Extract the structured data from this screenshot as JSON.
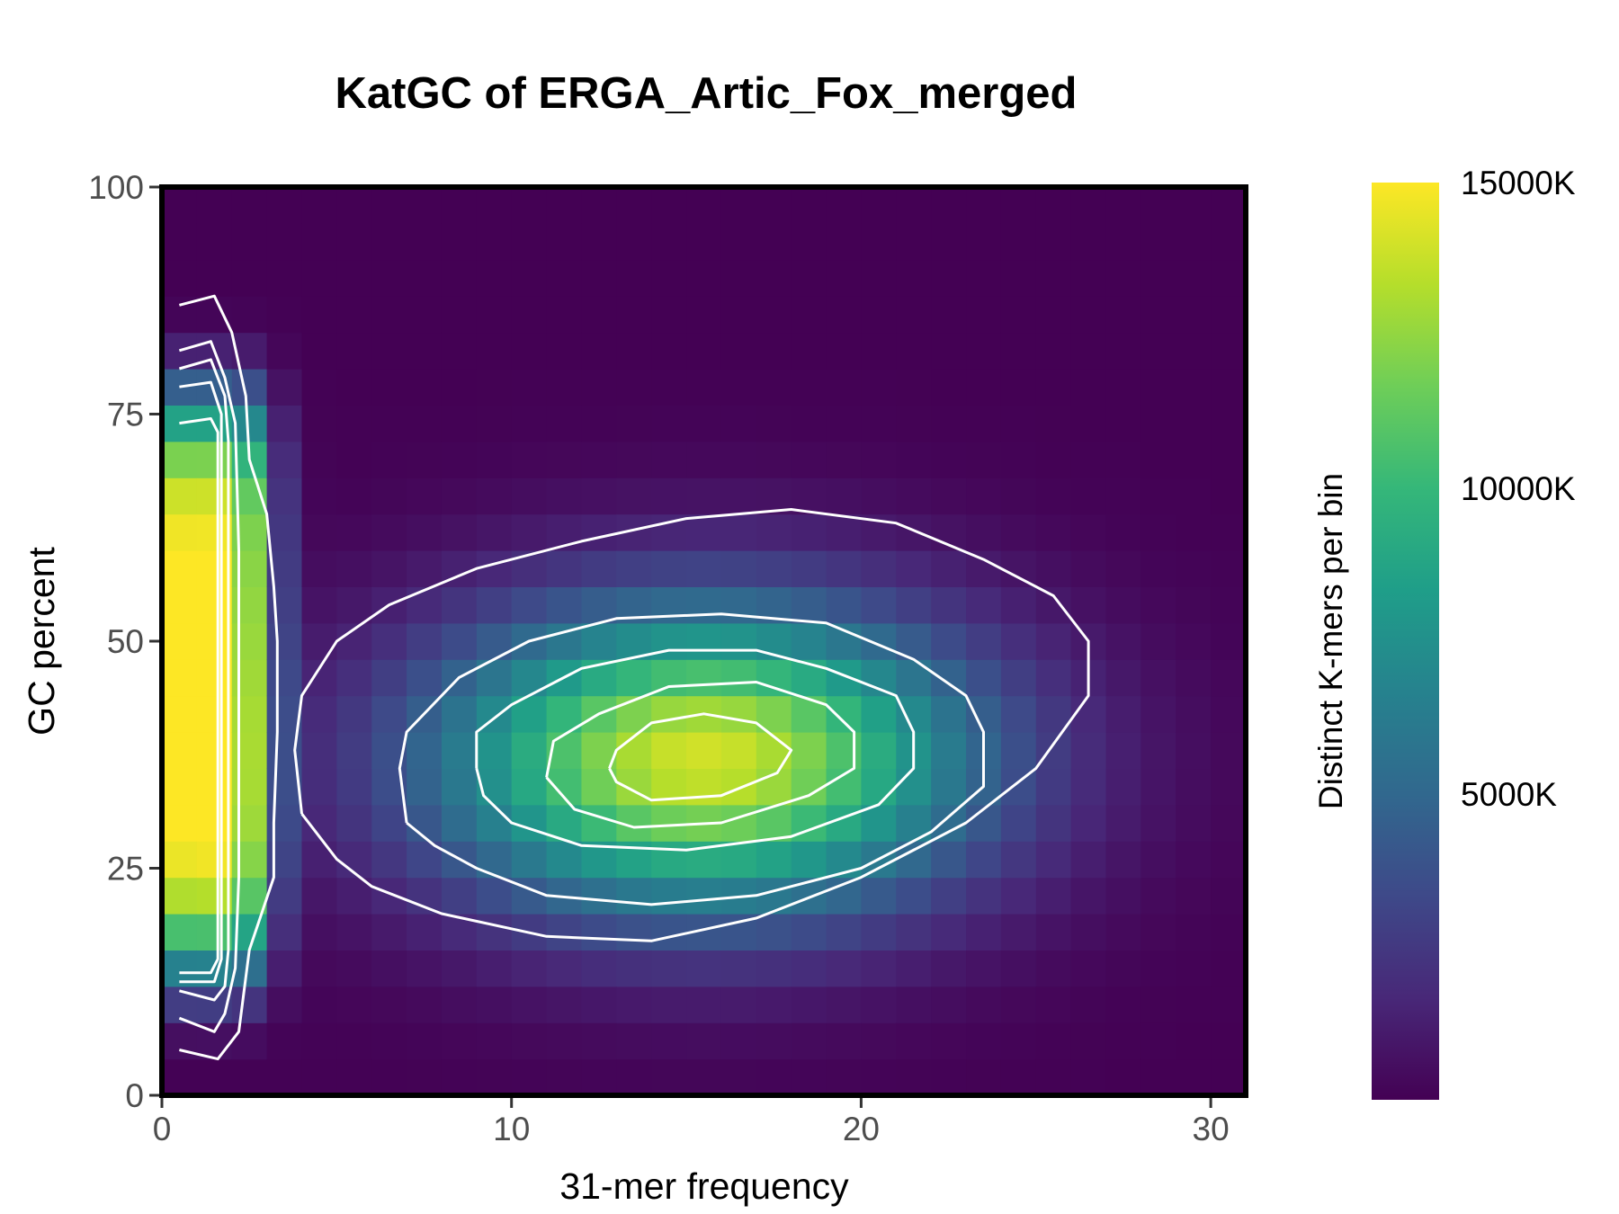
{
  "chart_data": {
    "type": "heatmap",
    "title": "KatGC of ERGA_Artic_Fox_merged",
    "xlabel": "31-mer frequency",
    "ylabel": "GC percent",
    "xlim": [
      0,
      31
    ],
    "ylim": [
      0,
      100
    ],
    "x_ticks": [
      "0",
      "10",
      "20",
      "30"
    ],
    "y_ticks": [
      "0",
      "25",
      "50",
      "75",
      "100"
    ],
    "colorbar": {
      "title": "Distinct K-mers per bin",
      "ticks": [
        "5000K",
        "10000K",
        "15000K"
      ],
      "tick_values": [
        5000,
        10000,
        15000
      ],
      "range": [
        0,
        15000
      ],
      "colormap": [
        "#440154",
        "#482878",
        "#3e4989",
        "#31688e",
        "#26828e",
        "#1f9e89",
        "#35b779",
        "#6ece58",
        "#b5de2b",
        "#fde725"
      ]
    },
    "grid": false,
    "legend_position": "right",
    "cells": {
      "x_bin_width": 1,
      "y_bin_width": 4,
      "low_coverage_peak": {
        "x_range": [
          0,
          2
        ],
        "gc_center": 45,
        "gc_spread": 32,
        "value_k": 15000
      },
      "main_peak": {
        "x_center": 15.5,
        "gc_center": 37,
        "x_spread": 5.5,
        "gc_spread": 12,
        "value_k": 14000
      }
    },
    "contours": [
      {
        "level_k": 2500,
        "points": [
          [
            4,
            31
          ],
          [
            3.8,
            38
          ],
          [
            4,
            44
          ],
          [
            5,
            50
          ],
          [
            6.5,
            54
          ],
          [
            9,
            58
          ],
          [
            12,
            61
          ],
          [
            15,
            63.5
          ],
          [
            18,
            64.5
          ],
          [
            21,
            63
          ],
          [
            23.5,
            59
          ],
          [
            25.5,
            55
          ],
          [
            26.5,
            50
          ],
          [
            26.5,
            44
          ],
          [
            25,
            36
          ],
          [
            23,
            30
          ],
          [
            20,
            24
          ],
          [
            17,
            19.5
          ],
          [
            14,
            17
          ],
          [
            11,
            17.5
          ],
          [
            8,
            20
          ],
          [
            6,
            23
          ],
          [
            5,
            26
          ],
          [
            4,
            31
          ]
        ]
      },
      {
        "level_k": 5000,
        "points": [
          [
            7,
            30
          ],
          [
            6.8,
            36
          ],
          [
            7,
            40
          ],
          [
            8.5,
            46
          ],
          [
            10.5,
            50
          ],
          [
            13,
            52.5
          ],
          [
            16,
            53
          ],
          [
            19,
            52
          ],
          [
            21.5,
            48
          ],
          [
            23,
            44
          ],
          [
            23.5,
            40
          ],
          [
            23.5,
            34
          ],
          [
            22,
            29
          ],
          [
            20,
            25
          ],
          [
            17,
            22
          ],
          [
            14,
            21
          ],
          [
            11,
            22
          ],
          [
            9,
            25
          ],
          [
            7.8,
            27.5
          ],
          [
            7,
            30
          ]
        ]
      },
      {
        "level_k": 7500,
        "points": [
          [
            9,
            36
          ],
          [
            9,
            40
          ],
          [
            10,
            43
          ],
          [
            12,
            47
          ],
          [
            14.5,
            49
          ],
          [
            17,
            49
          ],
          [
            19,
            47
          ],
          [
            21,
            44
          ],
          [
            21.5,
            40
          ],
          [
            21.5,
            36
          ],
          [
            20.5,
            32
          ],
          [
            18,
            28.5
          ],
          [
            15,
            27
          ],
          [
            12,
            27.5
          ],
          [
            10,
            30
          ],
          [
            9.2,
            33
          ],
          [
            9,
            36
          ]
        ]
      },
      {
        "level_k": 10000,
        "points": [
          [
            11,
            35
          ],
          [
            11.2,
            39
          ],
          [
            12.5,
            42
          ],
          [
            14.5,
            45
          ],
          [
            17,
            45.5
          ],
          [
            19,
            43
          ],
          [
            19.8,
            40
          ],
          [
            19.8,
            36
          ],
          [
            18.5,
            33
          ],
          [
            16,
            30
          ],
          [
            13.5,
            29.5
          ],
          [
            11.8,
            31.5
          ],
          [
            11,
            35
          ]
        ]
      },
      {
        "level_k": 12500,
        "points": [
          [
            12.8,
            36
          ],
          [
            13,
            38
          ],
          [
            14,
            41
          ],
          [
            15.5,
            42
          ],
          [
            17,
            41
          ],
          [
            18,
            38
          ],
          [
            17.6,
            35.5
          ],
          [
            16,
            33
          ],
          [
            14,
            32.5
          ],
          [
            13,
            34.5
          ],
          [
            12.8,
            36
          ]
        ]
      },
      {
        "level_k": 14000,
        "points": [
          [
            0.5,
            87
          ],
          [
            1.5,
            88
          ],
          [
            2,
            84
          ],
          [
            2.4,
            77
          ],
          [
            2.5,
            70
          ],
          [
            3,
            64
          ],
          [
            3.2,
            56
          ],
          [
            3.3,
            50
          ],
          [
            3.3,
            40
          ],
          [
            3.2,
            30
          ],
          [
            3.2,
            24
          ],
          [
            2.5,
            16
          ],
          [
            2.3,
            10
          ],
          [
            2.2,
            7
          ],
          [
            1.6,
            4
          ],
          [
            0.5,
            5
          ]
        ]
      },
      {
        "level_k": 14200,
        "points": [
          [
            0.5,
            82
          ],
          [
            1.4,
            83
          ],
          [
            1.8,
            79
          ],
          [
            2.1,
            74
          ],
          [
            2.2,
            60
          ],
          [
            2.2,
            44
          ],
          [
            2.2,
            24
          ],
          [
            2.1,
            14
          ],
          [
            1.8,
            9
          ],
          [
            1.5,
            7
          ],
          [
            0.5,
            8.5
          ]
        ]
      },
      {
        "level_k": 14400,
        "points": [
          [
            0.5,
            80
          ],
          [
            1.4,
            81
          ],
          [
            1.8,
            77
          ],
          [
            1.9,
            72
          ],
          [
            1.9,
            44
          ],
          [
            1.9,
            16
          ],
          [
            1.8,
            12
          ],
          [
            1.5,
            10.5
          ],
          [
            0.5,
            11.5
          ]
        ]
      },
      {
        "level_k": 14600,
        "points": [
          [
            0.5,
            78
          ],
          [
            1.4,
            78.5
          ],
          [
            1.7,
            75
          ],
          [
            1.7,
            44
          ],
          [
            1.7,
            15
          ],
          [
            1.5,
            12.5
          ],
          [
            0.5,
            12.5
          ]
        ]
      },
      {
        "level_k": 14800,
        "points": [
          [
            0.5,
            74
          ],
          [
            1.4,
            74.5
          ],
          [
            1.6,
            73
          ],
          [
            1.6,
            44
          ],
          [
            1.6,
            15
          ],
          [
            1.4,
            13.5
          ],
          [
            0.5,
            13.5
          ]
        ]
      }
    ]
  }
}
